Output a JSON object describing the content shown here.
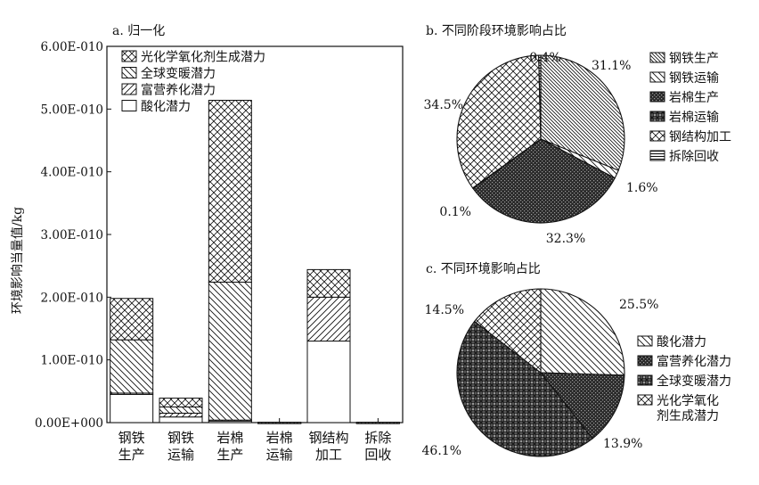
{
  "chart_data": [
    {
      "type": "bar",
      "title": "a. 归一化",
      "ylabel": "环境影响当量值/kg",
      "xlabel": "",
      "ylim": [
        0,
        6e-10
      ],
      "yticks": [
        0,
        1e-10,
        2e-10,
        3e-10,
        4e-10,
        5e-10,
        6e-10
      ],
      "ytick_labels": [
        "0.00E+000",
        "1.00E-010",
        "2.00E-010",
        "3.00E-010",
        "4.00E-010",
        "5.00E-010",
        "6.00E-010"
      ],
      "stacked": true,
      "categories": [
        [
          "钢铁",
          "生产"
        ],
        [
          "钢铁",
          "运输"
        ],
        [
          "岩棉",
          "生产"
        ],
        [
          "岩棉",
          "运输"
        ],
        [
          "钢结构",
          "加工"
        ],
        [
          "拆除",
          "回收"
        ]
      ],
      "series": [
        {
          "name": "酸化潜力",
          "values": [
            4.5e-11,
            9e-12,
            3e-12,
            1e-13,
            1.3e-10,
            1e-13
          ],
          "pattern": "none"
        },
        {
          "name": "富营养化潜力",
          "values": [
            2e-12,
            6e-12,
            1e-12,
            1e-13,
            7e-11,
            1e-13
          ],
          "pattern": "diag-up"
        },
        {
          "name": "全球变暖潜力",
          "values": [
            8.5e-11,
            1e-11,
            2.2e-10,
            1e-13,
            0,
            1e-13
          ],
          "pattern": "diag-down"
        },
        {
          "name": "光化学氧化剂生成潜力",
          "values": [
            6.6e-11,
            1.4e-11,
            2.9e-10,
            1e-13,
            4.4e-11,
            1e-13
          ],
          "pattern": "crosshatch"
        }
      ],
      "legend_order": [
        "光化学氧化剂生成潜力",
        "全球变暖潜力",
        "富营养化潜力",
        "酸化潜力"
      ],
      "legend_position": "top-left",
      "grid": false
    },
    {
      "type": "pie",
      "title": "b. 不同阶段环境影响占比",
      "slices": [
        {
          "name": "钢铁生产",
          "value": 31.1,
          "label": "31.1%",
          "pattern": "diag-down-dense"
        },
        {
          "name": "钢铁运输",
          "value": 1.6,
          "label": "1.6%",
          "pattern": "diag-down"
        },
        {
          "name": "岩棉生产",
          "value": 32.3,
          "label": "32.3%",
          "pattern": "dark-dots"
        },
        {
          "name": "岩棉运输",
          "value": 0.1,
          "label": "0.1%",
          "pattern": "dark-checker"
        },
        {
          "name": "钢结构加工",
          "value": 34.5,
          "label": "34.5%",
          "pattern": "crosshatch"
        },
        {
          "name": "拆除回收",
          "value": 0.4,
          "label": "0.4%",
          "pattern": "horizontal"
        }
      ],
      "legend_position": "right"
    },
    {
      "type": "pie",
      "title": "c. 不同环境影响占比",
      "slices": [
        {
          "name": "酸化潜力",
          "value": 25.5,
          "label": "25.5%",
          "pattern": "diag-down"
        },
        {
          "name": "富营养化潜力",
          "value": 13.9,
          "label": "13.9%",
          "pattern": "dark-dots"
        },
        {
          "name": "全球变暖潜力",
          "value": 46.1,
          "label": "46.1%",
          "pattern": "dark-checker"
        },
        {
          "name": "光化学氧化剂生成潜力",
          "value": 14.5,
          "label": "14.5%",
          "pattern": "crosshatch"
        }
      ],
      "legend_labels": [
        [
          "酸化潜力"
        ],
        [
          "富营养化潜力"
        ],
        [
          "全球变暖潜力"
        ],
        [
          "光化学氧化",
          "剂生成潜力"
        ]
      ],
      "legend_position": "right"
    }
  ]
}
